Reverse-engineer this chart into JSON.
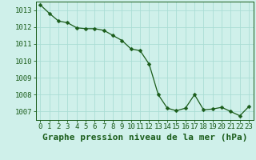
{
  "x": [
    0,
    1,
    2,
    3,
    4,
    5,
    6,
    7,
    8,
    9,
    10,
    11,
    12,
    13,
    14,
    15,
    16,
    17,
    18,
    19,
    20,
    21,
    22,
    23
  ],
  "y": [
    1013.3,
    1012.8,
    1012.35,
    1012.25,
    1011.95,
    1011.9,
    1011.9,
    1011.8,
    1011.5,
    1011.2,
    1010.7,
    1010.6,
    1009.8,
    1008.0,
    1007.2,
    1007.05,
    1007.2,
    1008.0,
    1007.1,
    1007.15,
    1007.25,
    1007.0,
    1006.75,
    1007.3
  ],
  "line_color": "#1a5c1a",
  "marker": "D",
  "marker_size": 2.5,
  "bg_color": "#cff0ea",
  "grid_color": "#aaddd5",
  "title": "Graphe pression niveau de la mer (hPa)",
  "xlim": [
    -0.5,
    23.5
  ],
  "ylim": [
    1006.5,
    1013.5
  ],
  "yticks": [
    1007,
    1008,
    1009,
    1010,
    1011,
    1012,
    1013
  ],
  "xticks": [
    0,
    1,
    2,
    3,
    4,
    5,
    6,
    7,
    8,
    9,
    10,
    11,
    12,
    13,
    14,
    15,
    16,
    17,
    18,
    19,
    20,
    21,
    22,
    23
  ],
  "xtick_labels": [
    "0",
    "1",
    "2",
    "3",
    "4",
    "5",
    "6",
    "7",
    "8",
    "9",
    "10",
    "11",
    "12",
    "13",
    "14",
    "15",
    "16",
    "17",
    "18",
    "19",
    "20",
    "21",
    "22",
    "23"
  ],
  "title_fontsize": 8,
  "tick_fontsize": 6.5,
  "title_color": "#1a5c1a",
  "axis_color": "#1a5c1a"
}
